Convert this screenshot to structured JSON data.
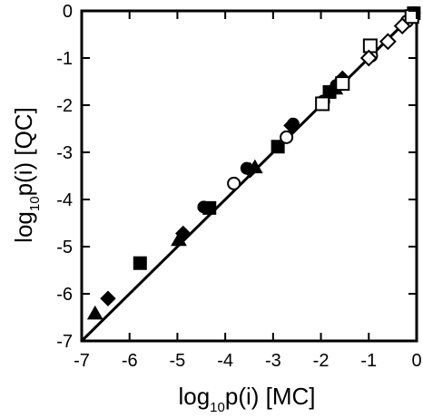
{
  "chart_data": {
    "type": "scatter",
    "xlabel": {
      "prefix": "log",
      "sub": "10",
      "suffix": "p(i) [MC]"
    },
    "ylabel": {
      "prefix": "log",
      "sub": "10",
      "suffix": "p(i) [QC]"
    },
    "xlim": [
      -7,
      0
    ],
    "ylim": [
      -7,
      0
    ],
    "xticks": [
      -7,
      -6,
      -5,
      -4,
      -3,
      -2,
      -1,
      0
    ],
    "yticks": [
      0,
      -1,
      -2,
      -3,
      -4,
      -5,
      -6,
      -7
    ],
    "xtick_labels": [
      "-7",
      "-6",
      "-5",
      "-4",
      "-3",
      "-2",
      "-1",
      "0"
    ],
    "ytick_labels": [
      "0",
      "-1",
      "-2",
      "-3",
      "-4",
      "-5",
      "-6",
      "-7"
    ],
    "grid": false,
    "reference_line": {
      "from": [
        -7,
        -7
      ],
      "to": [
        0,
        0
      ]
    },
    "series": [
      {
        "marker": "triangle-filled",
        "x": [
          -6.72,
          -4.97,
          -3.38,
          -1.7,
          -0.12
        ],
        "y": [
          -6.42,
          -4.86,
          -3.32,
          -1.65,
          -0.1
        ]
      },
      {
        "marker": "diamond-filled",
        "x": [
          -6.45,
          -4.88,
          -3.48,
          -2.62,
          -1.55,
          -0.08
        ],
        "y": [
          -6.1,
          -4.72,
          -3.38,
          -2.43,
          -1.43,
          -0.07
        ]
      },
      {
        "marker": "circle-filled",
        "x": [
          -4.45,
          -3.55,
          -2.58,
          -1.68,
          -0.05
        ],
        "y": [
          -4.16,
          -3.34,
          -2.4,
          -1.58,
          -0.04
        ]
      },
      {
        "marker": "square-filled",
        "x": [
          -5.78,
          -4.33,
          -2.9,
          -1.82,
          -0.06
        ],
        "y": [
          -5.35,
          -4.18,
          -2.88,
          -1.72,
          -0.05
        ]
      },
      {
        "marker": "circle-open",
        "x": [
          -3.82,
          -2.72,
          -1.95,
          -0.95,
          -0.2
        ],
        "y": [
          -3.66,
          -2.68,
          -1.92,
          -0.95,
          -0.22
        ]
      },
      {
        "marker": "square-open",
        "x": [
          -1.97,
          -1.55,
          -0.97,
          -0.1
        ],
        "y": [
          -1.97,
          -1.54,
          -0.74,
          -0.12
        ]
      },
      {
        "marker": "diamond-open",
        "x": [
          -1.0,
          -0.6,
          -0.3
        ],
        "y": [
          -1.0,
          -0.65,
          -0.32
        ]
      }
    ]
  }
}
